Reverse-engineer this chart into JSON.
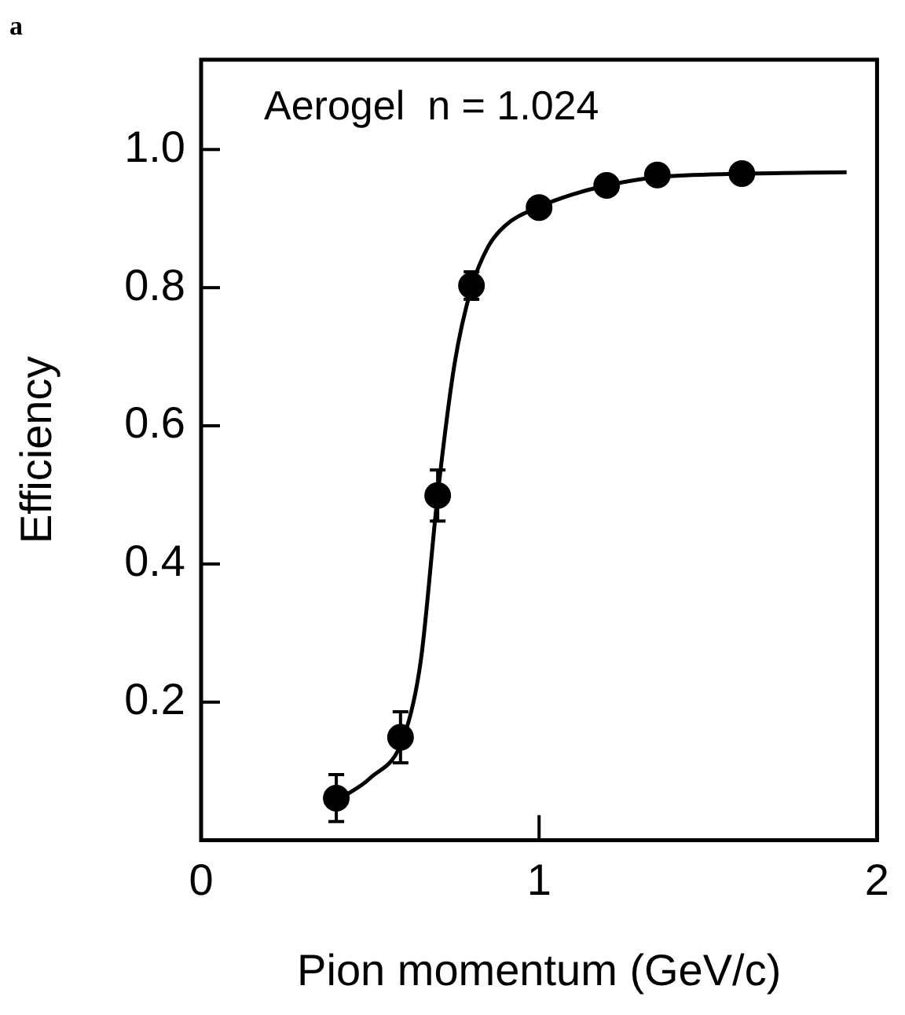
{
  "chart_data": {
    "type": "scatter",
    "xlabel": "Pion momentum (GeV/c)",
    "ylabel": "Efficiency",
    "annotations": [
      "a",
      "Aerogel  n = 1.024"
    ],
    "xlim": [
      0,
      2
    ],
    "xticks": [
      0,
      1,
      2
    ],
    "ylim": [
      0,
      1.13
    ],
    "yticks": [
      0.2,
      0.4,
      0.6,
      0.8,
      {
        "value": 1,
        "label": "1.0"
      }
    ],
    "grid": false,
    "legend": false,
    "marker": "circle",
    "series": [
      {
        "color": "#000000",
        "x": [
          0.4,
          0.59,
          0.7,
          0.8,
          1.0,
          1.2,
          1.35,
          1.6
        ],
        "values": [
          0.061,
          0.149,
          0.499,
          0.803,
          0.916,
          0.948,
          0.963,
          0.965
        ],
        "errors": [
          0.034,
          0.037,
          0.037,
          0.02,
          null,
          null,
          null,
          null
        ]
      },
      {
        "type": "line",
        "color": "#000000",
        "marker": "none",
        "line_style": "solid",
        "x": [
          0.41,
          0.5,
          0.6,
          0.65,
          0.7,
          0.75,
          0.8,
          0.85,
          0.9,
          1.0,
          1.1,
          1.2,
          1.35,
          1.6,
          1.91
        ],
        "values": [
          0.06,
          0.09,
          0.15,
          0.26,
          0.5,
          0.69,
          0.8,
          0.86,
          0.89,
          0.917,
          0.935,
          0.948,
          0.96,
          0.965,
          0.967
        ]
      }
    ]
  }
}
